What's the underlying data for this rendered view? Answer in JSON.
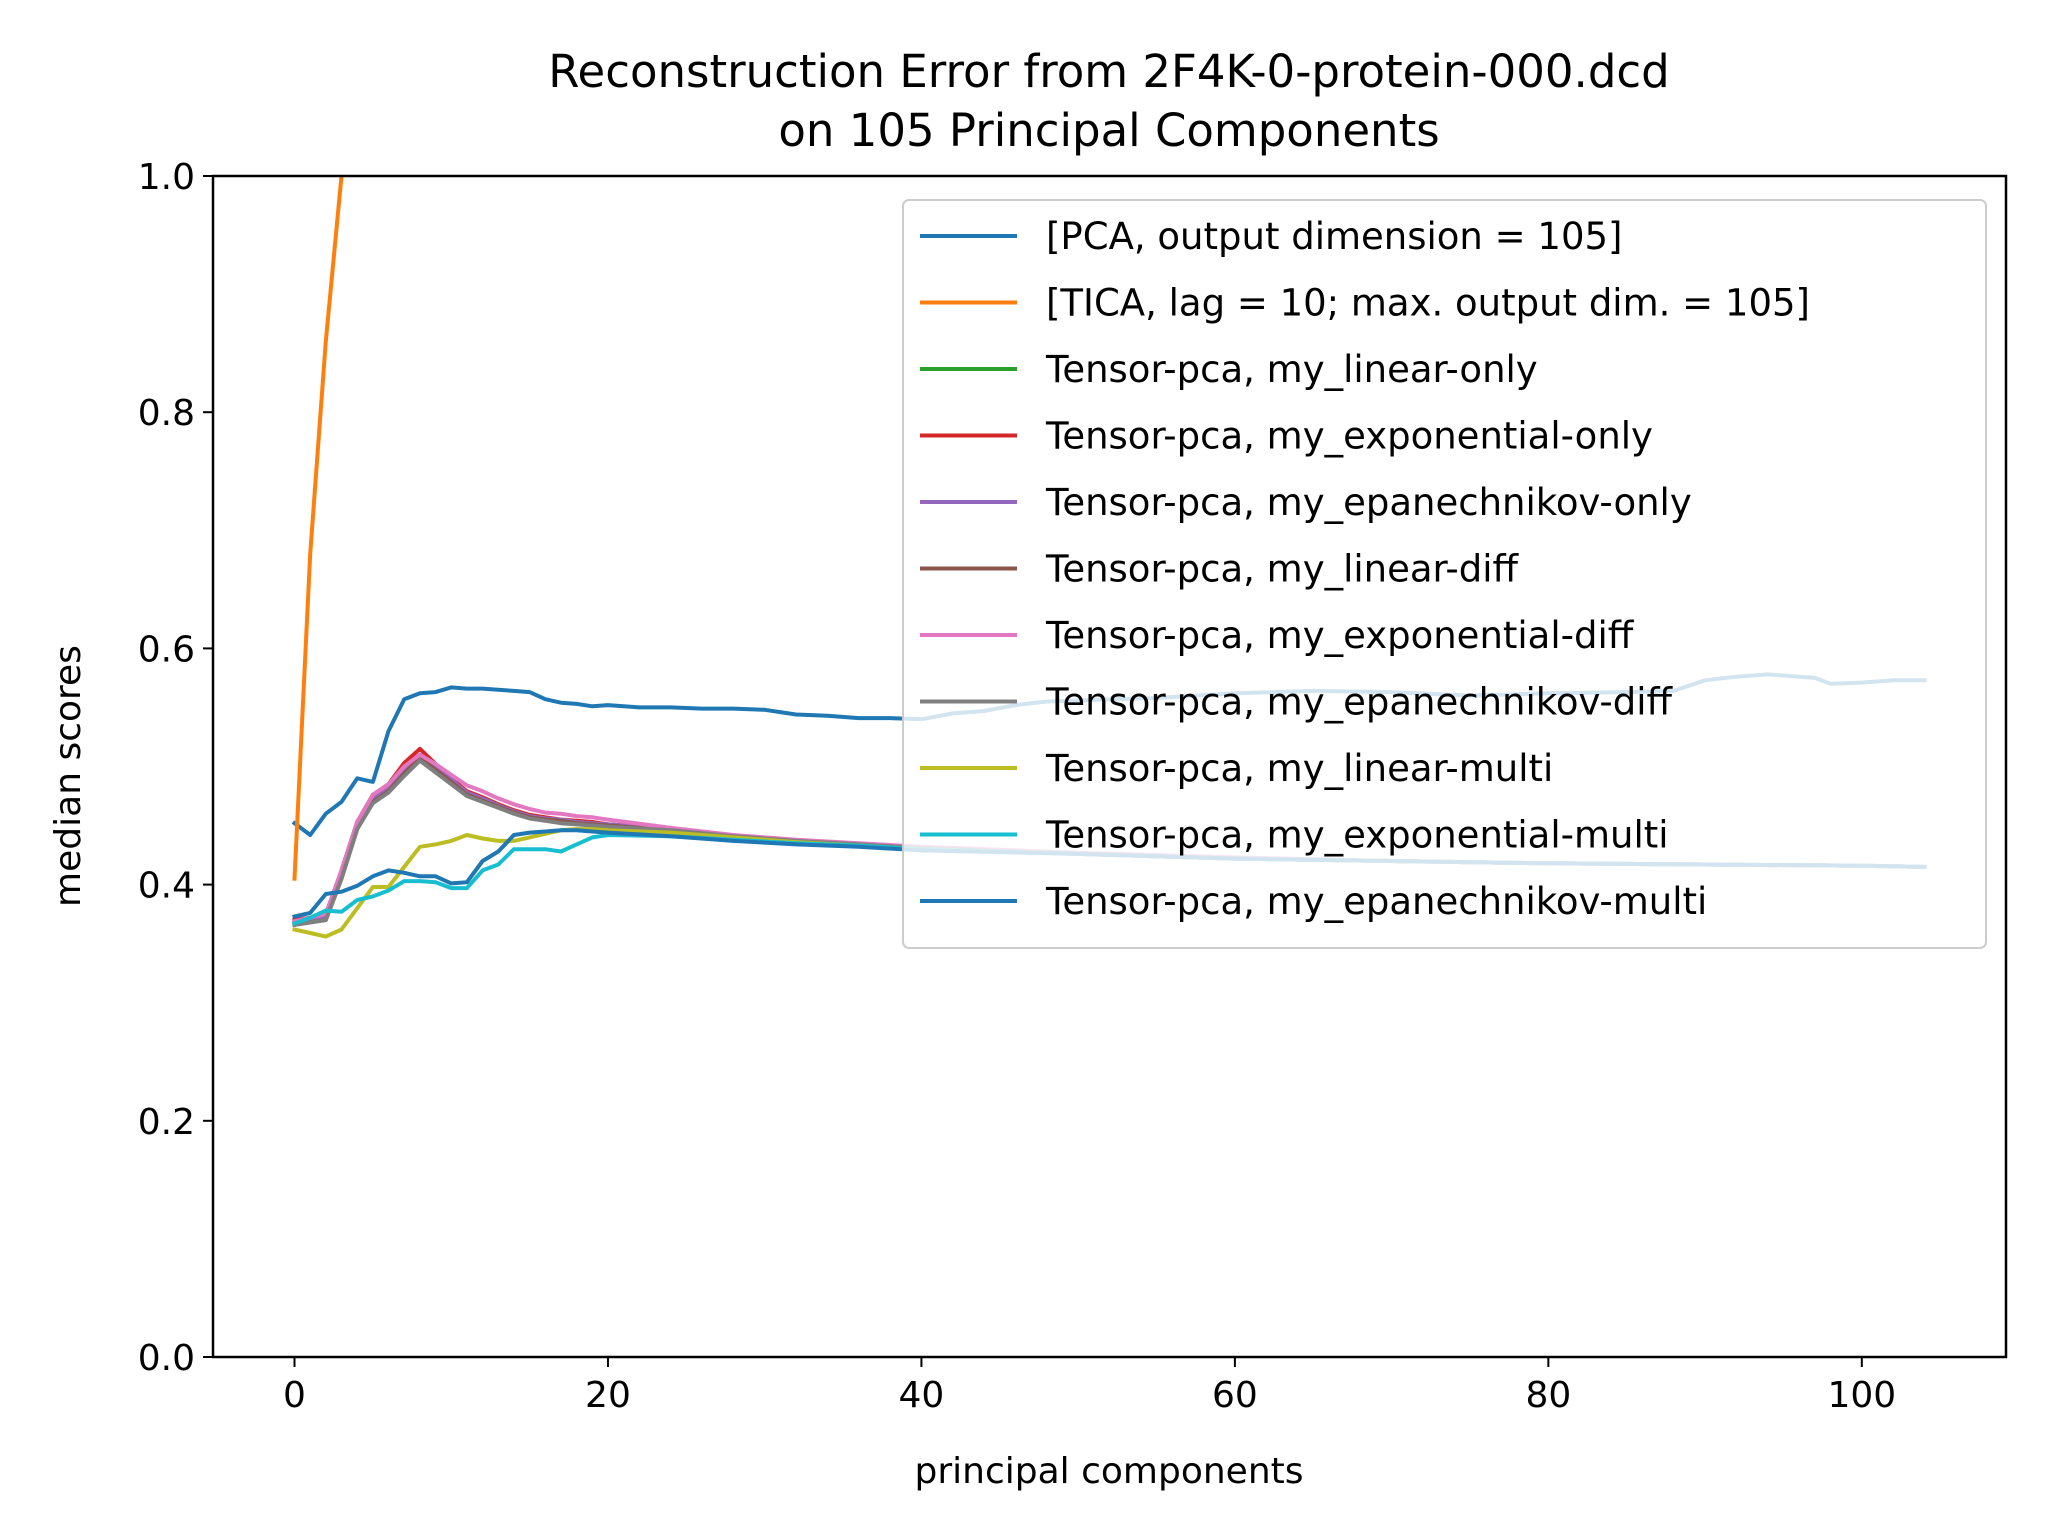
{
  "chart_data": {
    "type": "line",
    "title": "Reconstruction Error from 2F4K-0-protein-000.dcd",
    "subtitle": "on 105 Principal Components",
    "xlabel": "principal components",
    "ylabel": "median scores",
    "xlim": [
      -5.2,
      109.2
    ],
    "ylim": [
      0.0,
      1.0
    ],
    "xticks": [
      0,
      20,
      40,
      60,
      80,
      100
    ],
    "yticks": [
      0.0,
      0.2,
      0.4,
      0.6,
      0.8,
      1.0
    ],
    "xtick_labels": [
      "0",
      "20",
      "40",
      "60",
      "80",
      "100"
    ],
    "ytick_labels": [
      "0.0",
      "0.2",
      "0.4",
      "0.6",
      "0.8",
      "1.0"
    ],
    "grid": false,
    "legend_position": "top-right",
    "series": [
      {
        "name": "[PCA, output dimension = 105]",
        "color": "#1f77b4",
        "x": [
          0,
          1,
          2,
          3,
          4,
          5,
          6,
          7,
          8,
          9,
          10,
          11,
          12,
          13,
          14,
          15,
          16,
          17,
          18,
          19,
          20,
          22,
          24,
          26,
          28,
          30,
          32,
          34,
          36,
          38,
          40,
          42,
          44,
          46,
          48,
          50,
          55,
          60,
          65,
          70,
          75,
          80,
          85,
          88,
          90,
          92,
          94,
          97,
          98,
          100,
          102,
          104
        ],
        "y": [
          0.452,
          0.442,
          0.46,
          0.47,
          0.49,
          0.487,
          0.53,
          0.557,
          0.562,
          0.563,
          0.567,
          0.566,
          0.566,
          0.565,
          0.564,
          0.563,
          0.557,
          0.554,
          0.553,
          0.551,
          0.552,
          0.55,
          0.55,
          0.549,
          0.549,
          0.548,
          0.544,
          0.543,
          0.541,
          0.541,
          0.54,
          0.545,
          0.547,
          0.552,
          0.555,
          0.556,
          0.558,
          0.562,
          0.564,
          0.563,
          0.56,
          0.562,
          0.563,
          0.564,
          0.573,
          0.576,
          0.578,
          0.575,
          0.57,
          0.571,
          0.573,
          0.573
        ]
      },
      {
        "name": "[TICA, lag = 10; max. output dim. = 105]",
        "color": "#ff7f0e",
        "x": [
          0,
          1,
          2,
          3
        ],
        "y": [
          0.405,
          0.68,
          0.86,
          1.0
        ]
      },
      {
        "name": "Tensor-pca, my_linear-only",
        "color": "#2ca02c",
        "x": [
          0,
          1,
          2,
          3,
          4,
          5,
          6,
          7,
          8,
          9,
          10,
          11,
          12,
          13,
          14,
          15,
          16,
          17,
          18,
          19,
          20,
          24,
          28,
          32,
          36,
          40,
          50,
          60,
          70,
          80,
          90,
          100,
          104
        ],
        "y": [
          0.368,
          0.372,
          0.375,
          0.41,
          0.45,
          0.472,
          0.48,
          0.495,
          0.508,
          0.498,
          0.488,
          0.477,
          0.472,
          0.467,
          0.462,
          0.458,
          0.456,
          0.455,
          0.453,
          0.452,
          0.451,
          0.447,
          0.441,
          0.437,
          0.434,
          0.431,
          0.426,
          0.422,
          0.42,
          0.418,
          0.417,
          0.416,
          0.415
        ]
      },
      {
        "name": "Tensor-pca, my_exponential-only",
        "color": "#d62728",
        "x": [
          0,
          1,
          2,
          3,
          4,
          5,
          6,
          7,
          8,
          9,
          10,
          11,
          12,
          13,
          14,
          15,
          16,
          17,
          18,
          19,
          20,
          24,
          28,
          32,
          36,
          40,
          50,
          60,
          70,
          80,
          90,
          100,
          104
        ],
        "y": [
          0.37,
          0.372,
          0.374,
          0.412,
          0.453,
          0.476,
          0.485,
          0.503,
          0.515,
          0.502,
          0.49,
          0.479,
          0.474,
          0.468,
          0.463,
          0.459,
          0.457,
          0.455,
          0.454,
          0.453,
          0.451,
          0.447,
          0.441,
          0.437,
          0.434,
          0.431,
          0.426,
          0.422,
          0.42,
          0.418,
          0.417,
          0.416,
          0.415
        ]
      },
      {
        "name": "Tensor-pca, my_epanechnikov-only",
        "color": "#9467bd",
        "x": [
          0,
          1,
          2,
          3,
          4,
          5,
          6,
          7,
          8,
          9,
          10,
          11,
          12,
          13,
          14,
          15,
          16,
          17,
          18,
          19,
          20,
          24,
          28,
          32,
          36,
          40,
          50,
          60,
          70,
          80,
          90,
          100,
          104
        ],
        "y": [
          0.368,
          0.37,
          0.372,
          0.408,
          0.45,
          0.472,
          0.481,
          0.498,
          0.51,
          0.499,
          0.489,
          0.478,
          0.473,
          0.467,
          0.462,
          0.458,
          0.456,
          0.455,
          0.453,
          0.452,
          0.451,
          0.447,
          0.441,
          0.437,
          0.434,
          0.431,
          0.426,
          0.422,
          0.42,
          0.418,
          0.417,
          0.416,
          0.415
        ]
      },
      {
        "name": "Tensor-pca, my_linear-diff",
        "color": "#8c564b",
        "x": [
          0,
          1,
          2,
          3,
          4,
          5,
          6,
          7,
          8,
          9,
          10,
          11,
          12,
          13,
          14,
          15,
          16,
          17,
          18,
          19,
          20,
          24,
          28,
          32,
          36,
          40,
          50,
          60,
          70,
          80,
          90,
          100,
          104
        ],
        "y": [
          0.366,
          0.368,
          0.37,
          0.405,
          0.447,
          0.47,
          0.479,
          0.494,
          0.507,
          0.497,
          0.487,
          0.476,
          0.471,
          0.466,
          0.461,
          0.457,
          0.455,
          0.454,
          0.452,
          0.451,
          0.45,
          0.446,
          0.441,
          0.437,
          0.434,
          0.431,
          0.426,
          0.422,
          0.42,
          0.418,
          0.417,
          0.416,
          0.415
        ]
      },
      {
        "name": "Tensor-pca, my_exponential-diff",
        "color": "#e377c2",
        "x": [
          0,
          1,
          2,
          3,
          4,
          5,
          6,
          7,
          8,
          9,
          10,
          11,
          12,
          13,
          14,
          15,
          16,
          17,
          18,
          19,
          20,
          24,
          28,
          32,
          36,
          40,
          50,
          60,
          70,
          80,
          90,
          100,
          104
        ],
        "y": [
          0.369,
          0.372,
          0.375,
          0.412,
          0.453,
          0.476,
          0.485,
          0.5,
          0.51,
          0.502,
          0.493,
          0.484,
          0.479,
          0.473,
          0.468,
          0.464,
          0.461,
          0.46,
          0.458,
          0.457,
          0.455,
          0.448,
          0.442,
          0.438,
          0.435,
          0.432,
          0.427,
          0.423,
          0.42,
          0.418,
          0.417,
          0.416,
          0.415
        ]
      },
      {
        "name": "Tensor-pca, my_epanechnikov-diff",
        "color": "#7f7f7f",
        "x": [
          0,
          1,
          2,
          3,
          4,
          5,
          6,
          7,
          8,
          9,
          10,
          11,
          12,
          13,
          14,
          15,
          16,
          17,
          18,
          19,
          20,
          24,
          28,
          32,
          36,
          40,
          50,
          60,
          70,
          80,
          90,
          100,
          104
        ],
        "y": [
          0.366,
          0.368,
          0.37,
          0.405,
          0.447,
          0.469,
          0.478,
          0.492,
          0.505,
          0.495,
          0.485,
          0.475,
          0.47,
          0.465,
          0.46,
          0.456,
          0.454,
          0.452,
          0.451,
          0.45,
          0.449,
          0.446,
          0.441,
          0.437,
          0.434,
          0.431,
          0.426,
          0.422,
          0.42,
          0.418,
          0.417,
          0.416,
          0.415
        ]
      },
      {
        "name": "Tensor-pca, my_linear-multi",
        "color": "#bcbd22",
        "x": [
          0,
          1,
          2,
          3,
          4,
          5,
          6,
          7,
          8,
          9,
          10,
          11,
          12,
          13,
          14,
          15,
          16,
          17,
          18,
          19,
          20,
          24,
          28,
          32,
          36,
          40,
          50,
          60,
          70,
          80,
          90,
          100,
          104
        ],
        "y": [
          0.362,
          0.359,
          0.356,
          0.362,
          0.38,
          0.398,
          0.398,
          0.415,
          0.432,
          0.434,
          0.437,
          0.442,
          0.439,
          0.437,
          0.437,
          0.44,
          0.443,
          0.446,
          0.447,
          0.447,
          0.446,
          0.444,
          0.44,
          0.436,
          0.433,
          0.43,
          0.426,
          0.422,
          0.42,
          0.418,
          0.417,
          0.416,
          0.415
        ]
      },
      {
        "name": "Tensor-pca, my_exponential-multi",
        "color": "#17becf",
        "x": [
          0,
          1,
          2,
          3,
          4,
          5,
          6,
          7,
          8,
          9,
          10,
          11,
          12,
          13,
          14,
          15,
          16,
          17,
          18,
          19,
          20,
          24,
          28,
          32,
          36,
          40,
          50,
          60,
          70,
          80,
          90,
          100,
          104
        ],
        "y": [
          0.367,
          0.372,
          0.378,
          0.377,
          0.387,
          0.39,
          0.395,
          0.403,
          0.403,
          0.402,
          0.397,
          0.397,
          0.412,
          0.417,
          0.43,
          0.43,
          0.43,
          0.428,
          0.434,
          0.44,
          0.442,
          0.441,
          0.438,
          0.435,
          0.433,
          0.43,
          0.426,
          0.422,
          0.42,
          0.418,
          0.417,
          0.416,
          0.415
        ]
      },
      {
        "name": "Tensor-pca, my_epanechnikov-multi",
        "color": "#1f77b4",
        "x": [
          0,
          1,
          2,
          3,
          4,
          5,
          6,
          7,
          8,
          9,
          10,
          11,
          12,
          13,
          14,
          15,
          16,
          17,
          18,
          19,
          20,
          24,
          28,
          32,
          36,
          40,
          50,
          60,
          70,
          80,
          90,
          100,
          104
        ],
        "y": [
          0.373,
          0.376,
          0.392,
          0.394,
          0.399,
          0.407,
          0.412,
          0.41,
          0.407,
          0.407,
          0.401,
          0.402,
          0.42,
          0.428,
          0.442,
          0.444,
          0.445,
          0.446,
          0.446,
          0.445,
          0.444,
          0.441,
          0.437,
          0.434,
          0.432,
          0.429,
          0.426,
          0.422,
          0.42,
          0.418,
          0.417,
          0.416,
          0.415
        ]
      }
    ]
  }
}
